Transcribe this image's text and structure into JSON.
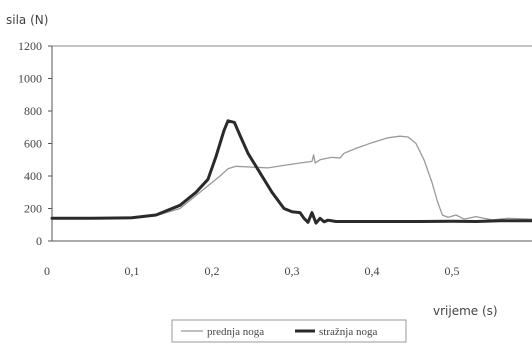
{
  "chart_data": {
    "type": "line",
    "ylabel": "sila  (N)",
    "xlabel": "vrijeme (s)",
    "xlim": [
      0,
      0.6
    ],
    "ylim": [
      0,
      1200
    ],
    "x_ticks": [
      0,
      0.1,
      0.2,
      0.3,
      0.4,
      0.5
    ],
    "x_tick_labels": [
      "0",
      "0,1",
      "0,2",
      "0,3",
      "0,4",
      "0,5"
    ],
    "y_ticks": [
      0,
      200,
      400,
      600,
      800,
      1000,
      1200
    ],
    "y_tick_labels": [
      "0",
      "200",
      "400",
      "600",
      "800",
      "1000",
      "1200"
    ],
    "grid": false,
    "legend_position": "bottom-center",
    "series": [
      {
        "name": "prednja noga",
        "color": "#9a9a9a",
        "style": "thin",
        "points": [
          [
            0,
            140
          ],
          [
            0.05,
            140
          ],
          [
            0.1,
            142
          ],
          [
            0.13,
            155
          ],
          [
            0.16,
            200
          ],
          [
            0.18,
            280
          ],
          [
            0.2,
            360
          ],
          [
            0.21,
            400
          ],
          [
            0.22,
            445
          ],
          [
            0.23,
            460
          ],
          [
            0.25,
            455
          ],
          [
            0.27,
            450
          ],
          [
            0.29,
            465
          ],
          [
            0.31,
            480
          ],
          [
            0.325,
            490
          ],
          [
            0.327,
            530
          ],
          [
            0.329,
            480
          ],
          [
            0.335,
            500
          ],
          [
            0.35,
            515
          ],
          [
            0.36,
            510
          ],
          [
            0.365,
            540
          ],
          [
            0.38,
            570
          ],
          [
            0.4,
            605
          ],
          [
            0.42,
            635
          ],
          [
            0.435,
            645
          ],
          [
            0.445,
            640
          ],
          [
            0.455,
            600
          ],
          [
            0.465,
            500
          ],
          [
            0.475,
            360
          ],
          [
            0.482,
            240
          ],
          [
            0.488,
            160
          ],
          [
            0.495,
            145
          ],
          [
            0.505,
            160
          ],
          [
            0.515,
            135
          ],
          [
            0.53,
            150
          ],
          [
            0.55,
            130
          ],
          [
            0.57,
            140
          ],
          [
            0.6,
            135
          ]
        ]
      },
      {
        "name": "stražnja noga",
        "color": "#2a2a2a",
        "style": "thick",
        "points": [
          [
            0,
            140
          ],
          [
            0.05,
            140
          ],
          [
            0.1,
            143
          ],
          [
            0.13,
            160
          ],
          [
            0.16,
            220
          ],
          [
            0.18,
            300
          ],
          [
            0.195,
            380
          ],
          [
            0.205,
            520
          ],
          [
            0.215,
            680
          ],
          [
            0.22,
            740
          ],
          [
            0.228,
            730
          ],
          [
            0.235,
            650
          ],
          [
            0.245,
            540
          ],
          [
            0.26,
            420
          ],
          [
            0.275,
            300
          ],
          [
            0.29,
            200
          ],
          [
            0.3,
            180
          ],
          [
            0.31,
            175
          ],
          [
            0.315,
            140
          ],
          [
            0.32,
            115
          ],
          [
            0.325,
            175
          ],
          [
            0.33,
            110
          ],
          [
            0.335,
            140
          ],
          [
            0.34,
            118
          ],
          [
            0.345,
            128
          ],
          [
            0.355,
            120
          ],
          [
            0.38,
            120
          ],
          [
            0.42,
            120
          ],
          [
            0.46,
            120
          ],
          [
            0.5,
            122
          ],
          [
            0.53,
            120
          ],
          [
            0.56,
            125
          ],
          [
            0.6,
            125
          ]
        ]
      }
    ]
  }
}
